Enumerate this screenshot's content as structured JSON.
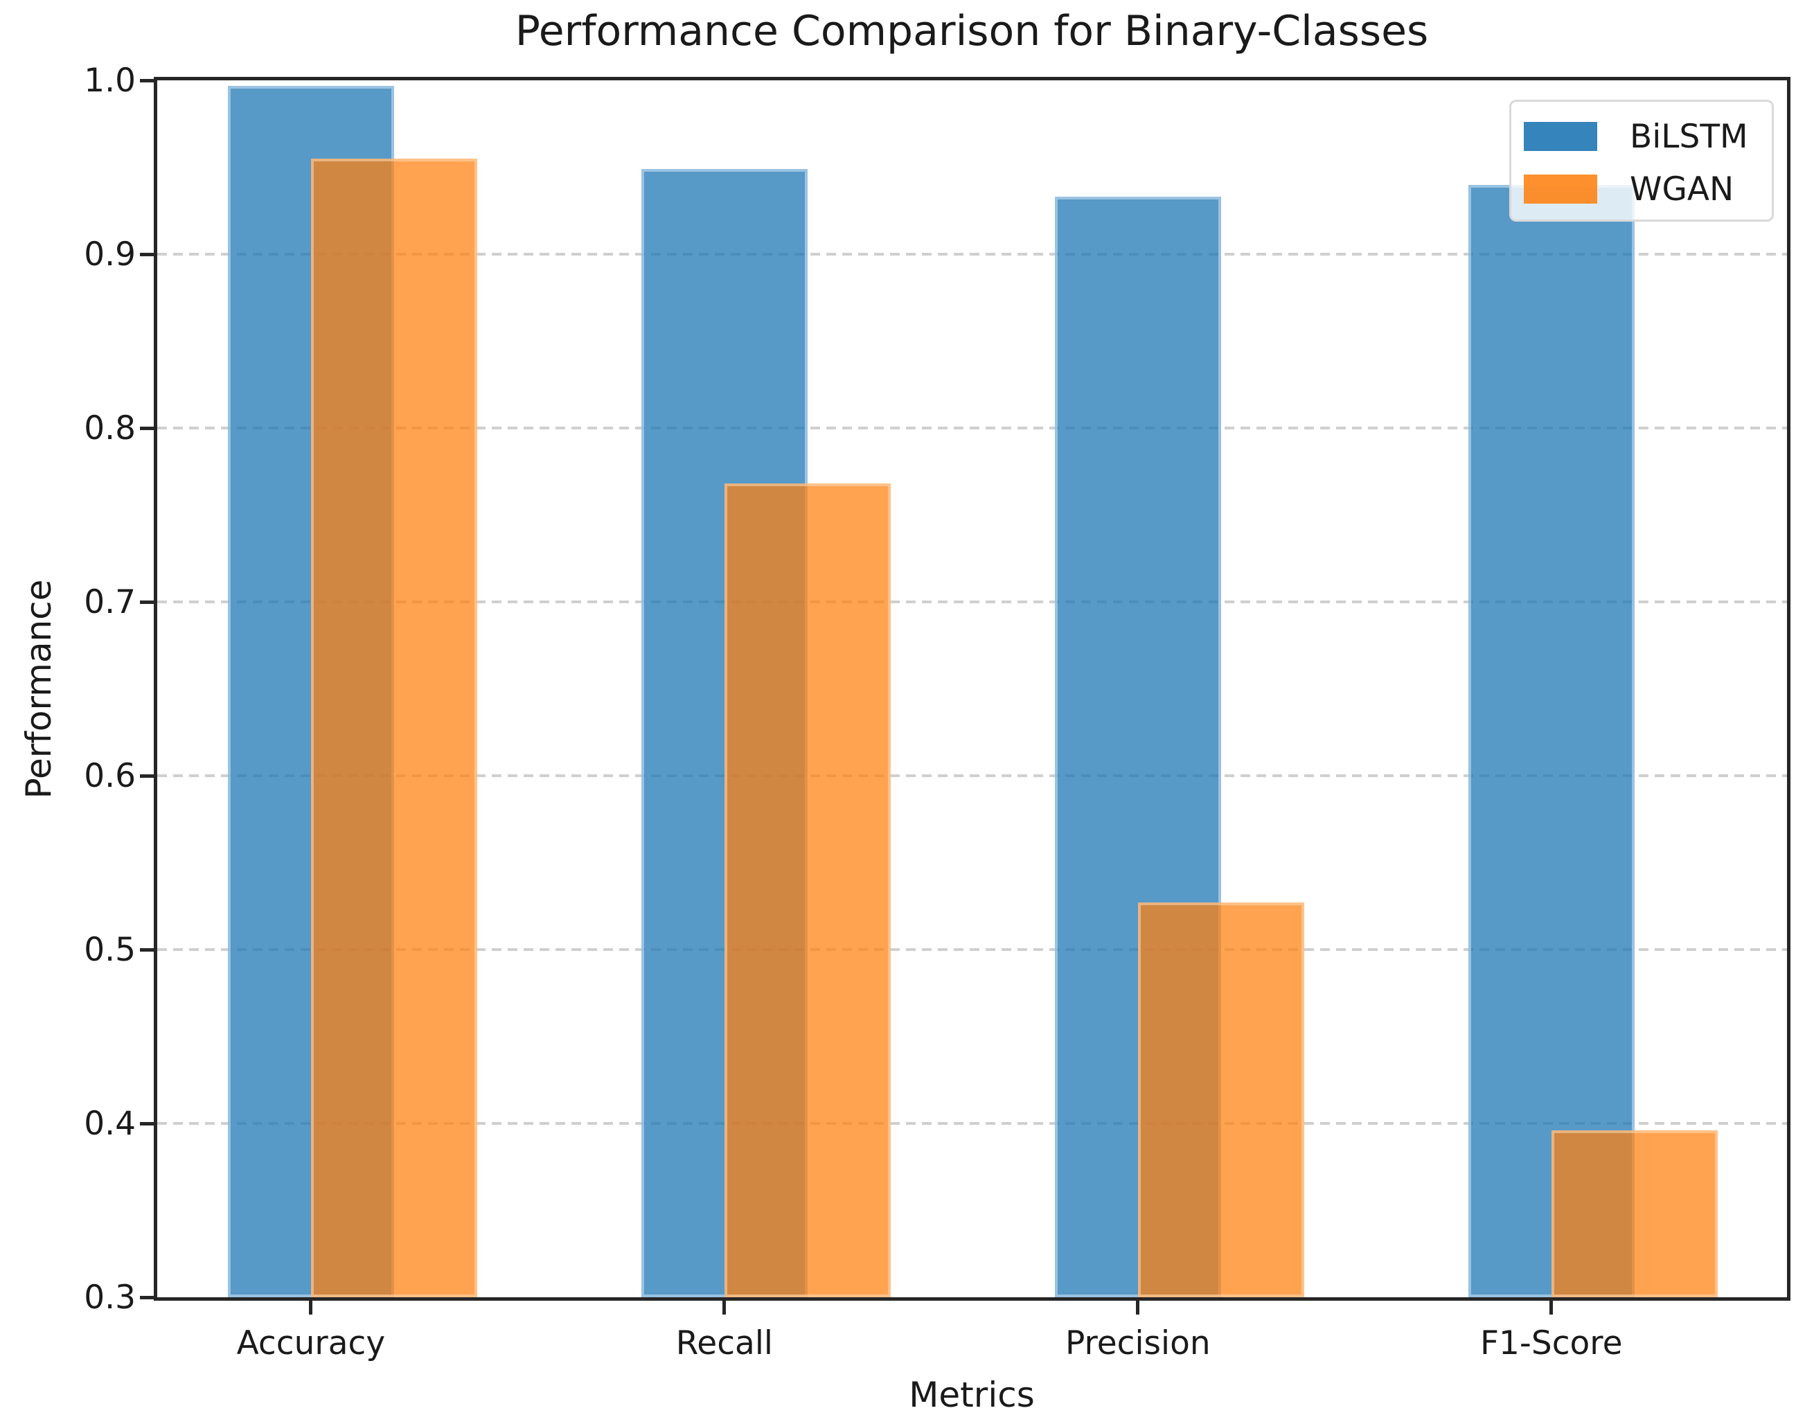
{
  "chart_data": {
    "type": "bar",
    "title": "Performance Comparison for Binary-Classes",
    "xlabel": "Metrics",
    "ylabel": "Performance",
    "categories": [
      "Accuracy",
      "Recall",
      "Precision",
      "F1-Score"
    ],
    "series": [
      {
        "name": "BiLSTM",
        "color": "#1f77b4",
        "alpha": 0.75,
        "values": [
          0.997,
          0.949,
          0.933,
          0.94
        ]
      },
      {
        "name": "WGAN",
        "color": "#ff7f0e",
        "alpha": 0.72,
        "values": [
          0.955,
          0.768,
          0.527,
          0.396
        ]
      }
    ],
    "ylim": [
      0.3,
      1.0
    ],
    "yticks": [
      1.0,
      0.9,
      0.8,
      0.7,
      0.6,
      0.5,
      0.4,
      0.3
    ],
    "grid": "horizontal dashed",
    "legend": {
      "position": "upper right",
      "entries": [
        "BiLSTM",
        "WGAN"
      ]
    },
    "colors": {
      "grid": "#cfcfcf",
      "spine": "#262626",
      "text": "#1a1a1a",
      "legend_border": "#d9d9d9"
    }
  }
}
